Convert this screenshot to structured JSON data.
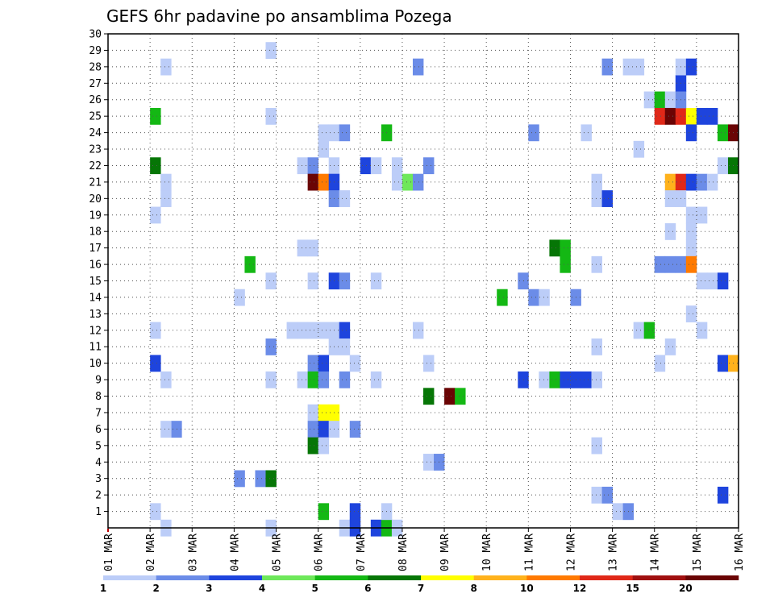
{
  "chart_data": {
    "type": "heatmap",
    "title": "GEFS 6hr padavine po ansamblima Pozega",
    "xlabel": "",
    "ylabel": "",
    "x_ticks": [
      "01 MAR",
      "02 MAR",
      "03 MAR",
      "04 MAR",
      "05 MAR",
      "06 MAR",
      "07 MAR",
      "08 MAR",
      "09 MAR",
      "10 MAR",
      "11 MAR",
      "12 MAR",
      "13 MAR",
      "14 MAR",
      "15 MAR",
      "16 MAR"
    ],
    "y_ticks": [
      "1",
      "2",
      "3",
      "4",
      "5",
      "6",
      "7",
      "8",
      "9",
      "10",
      "11",
      "12",
      "13",
      "14",
      "15",
      "16",
      "17",
      "18",
      "19",
      "20",
      "21",
      "22",
      "23",
      "24",
      "25",
      "26",
      "27",
      "28",
      "29",
      "30"
    ],
    "x_range_days": [
      0,
      15
    ],
    "y_range_members": [
      0,
      30
    ],
    "time_step_hours": 6,
    "grid": "dotted",
    "legend": {
      "placement": "bottom",
      "levels": [
        "1",
        "2",
        "3",
        "4",
        "5",
        "6",
        "7",
        "8",
        "10",
        "12",
        "15",
        "20"
      ],
      "colors": [
        "#bccdf8",
        "#6b8ce8",
        "#1e44dd",
        "#6ee85a",
        "#14b814",
        "#067606",
        "#ffff00",
        "#ffb21c",
        "#ff7a00",
        "#e02818",
        "#a01010",
        "#6a0404"
      ]
    },
    "cells_note": "each cell: [forecast day offset (steps of 6h), ensemble member, precipitation class 1-12]",
    "cells": [
      [
        1.25,
        28,
        1
      ],
      [
        1.0,
        25,
        5
      ],
      [
        1.0,
        22,
        6
      ],
      [
        1.25,
        21,
        1
      ],
      [
        1.25,
        20,
        1
      ],
      [
        1.0,
        19,
        1
      ],
      [
        1.0,
        12,
        1
      ],
      [
        1.0,
        10,
        3
      ],
      [
        1.25,
        9,
        1
      ],
      [
        1.5,
        6,
        2
      ],
      [
        1.25,
        6,
        1
      ],
      [
        1.0,
        1,
        1
      ],
      [
        1.25,
        0,
        1
      ],
      [
        3.75,
        29,
        1
      ],
      [
        3.75,
        25,
        1
      ],
      [
        3.0,
        14,
        1
      ],
      [
        3.75,
        15,
        1
      ],
      [
        3.25,
        16,
        5
      ],
      [
        3.75,
        11,
        2
      ],
      [
        3.75,
        9,
        1
      ],
      [
        3.0,
        3,
        2
      ],
      [
        3.5,
        3,
        2
      ],
      [
        3.75,
        3,
        6
      ],
      [
        3.75,
        0,
        1
      ],
      [
        4.25,
        12,
        1
      ],
      [
        4.5,
        22,
        1
      ],
      [
        4.75,
        22,
        2
      ],
      [
        4.5,
        17,
        1
      ],
      [
        4.75,
        17,
        1
      ],
      [
        4.75,
        15,
        1
      ],
      [
        4.5,
        12,
        1
      ],
      [
        4.75,
        12,
        1
      ],
      [
        4.75,
        10,
        2
      ],
      [
        4.5,
        9,
        1
      ],
      [
        4.75,
        9,
        5
      ],
      [
        4.75,
        7,
        1
      ],
      [
        4.75,
        6,
        2
      ],
      [
        4.75,
        5,
        6
      ],
      [
        4.75,
        21,
        12
      ],
      [
        5.0,
        24,
        1
      ],
      [
        5.0,
        23,
        1
      ],
      [
        5.25,
        24,
        1
      ],
      [
        5.5,
        24,
        2
      ],
      [
        5.25,
        22,
        1
      ],
      [
        5.0,
        21,
        9
      ],
      [
        5.25,
        21,
        3
      ],
      [
        5.25,
        20,
        2
      ],
      [
        5.5,
        20,
        1
      ],
      [
        5.25,
        15,
        3
      ],
      [
        5.5,
        15,
        2
      ],
      [
        5.0,
        12,
        1
      ],
      [
        5.25,
        12,
        1
      ],
      [
        5.5,
        12,
        3
      ],
      [
        5.25,
        11,
        1
      ],
      [
        5.5,
        11,
        1
      ],
      [
        5.0,
        10,
        3
      ],
      [
        5.0,
        9,
        2
      ],
      [
        5.5,
        9,
        2
      ],
      [
        5.0,
        7,
        7
      ],
      [
        5.25,
        7,
        7
      ],
      [
        5.0,
        6,
        3
      ],
      [
        5.25,
        6,
        1
      ],
      [
        5.0,
        5,
        1
      ],
      [
        5.0,
        1,
        5
      ],
      [
        5.5,
        0,
        1
      ],
      [
        5.75,
        10,
        1
      ],
      [
        5.75,
        6,
        2
      ],
      [
        5.75,
        1,
        3
      ],
      [
        5.75,
        0,
        3
      ],
      [
        6.0,
        22,
        3
      ],
      [
        6.25,
        22,
        1
      ],
      [
        6.25,
        15,
        1
      ],
      [
        6.25,
        9,
        1
      ],
      [
        6.25,
        0,
        3
      ],
      [
        6.5,
        0,
        5
      ],
      [
        6.5,
        1,
        1
      ],
      [
        6.75,
        0,
        1
      ],
      [
        6.5,
        24,
        5
      ],
      [
        6.75,
        22,
        1
      ],
      [
        6.75,
        21,
        1
      ],
      [
        7.0,
        21,
        4
      ],
      [
        7.25,
        21,
        2
      ],
      [
        7.5,
        22,
        2
      ],
      [
        7.25,
        28,
        2
      ],
      [
        7.25,
        12,
        1
      ],
      [
        7.5,
        10,
        1
      ],
      [
        7.5,
        8,
        6
      ],
      [
        7.5,
        4,
        1
      ],
      [
        7.75,
        4,
        2
      ],
      [
        8.0,
        8,
        12
      ],
      [
        8.25,
        8,
        5
      ],
      [
        10.0,
        24,
        2
      ],
      [
        9.75,
        15,
        2
      ],
      [
        9.75,
        9,
        3
      ],
      [
        10.0,
        14,
        2
      ],
      [
        10.25,
        14,
        1
      ],
      [
        10.25,
        9,
        1
      ],
      [
        10.5,
        9,
        5
      ],
      [
        10.75,
        9,
        3
      ],
      [
        11.0,
        9,
        3
      ],
      [
        11.25,
        9,
        3
      ],
      [
        11.5,
        9,
        1
      ],
      [
        10.5,
        17,
        6
      ],
      [
        10.75,
        17,
        5
      ],
      [
        10.75,
        16,
        5
      ],
      [
        11.0,
        14,
        2
      ],
      [
        11.25,
        24,
        1
      ],
      [
        9.25,
        14,
        5
      ],
      [
        11.75,
        28,
        2
      ],
      [
        12.25,
        28,
        1
      ],
      [
        12.5,
        28,
        1
      ],
      [
        12.5,
        23,
        1
      ],
      [
        11.5,
        21,
        1
      ],
      [
        11.5,
        20,
        1
      ],
      [
        11.75,
        20,
        3
      ],
      [
        11.5,
        16,
        1
      ],
      [
        11.5,
        11,
        1
      ],
      [
        12.0,
        1,
        1
      ],
      [
        12.25,
        1,
        2
      ],
      [
        11.5,
        2,
        1
      ],
      [
        11.75,
        2,
        2
      ],
      [
        11.5,
        5,
        1
      ],
      [
        12.5,
        12,
        1
      ],
      [
        12.75,
        12,
        5
      ],
      [
        12.75,
        26,
        1
      ],
      [
        13.0,
        26,
        5
      ],
      [
        13.25,
        26,
        1
      ],
      [
        13.0,
        25,
        10
      ],
      [
        13.25,
        25,
        12
      ],
      [
        13.5,
        25,
        10
      ],
      [
        13.75,
        25,
        7
      ],
      [
        14.0,
        25,
        3
      ],
      [
        14.25,
        25,
        3
      ],
      [
        13.75,
        24,
        3
      ],
      [
        13.25,
        21,
        8
      ],
      [
        13.5,
        21,
        10
      ],
      [
        13.75,
        21,
        3
      ],
      [
        14.0,
        21,
        2
      ],
      [
        14.25,
        21,
        1
      ],
      [
        13.25,
        20,
        1
      ],
      [
        13.5,
        20,
        1
      ],
      [
        13.75,
        19,
        1
      ],
      [
        14.0,
        19,
        1
      ],
      [
        13.25,
        18,
        1
      ],
      [
        13.75,
        18,
        1
      ],
      [
        13.75,
        17,
        1
      ],
      [
        13.0,
        16,
        2
      ],
      [
        13.25,
        16,
        2
      ],
      [
        13.5,
        16,
        2
      ],
      [
        13.75,
        16,
        9
      ],
      [
        13.75,
        13,
        1
      ],
      [
        14.0,
        15,
        1
      ],
      [
        14.25,
        15,
        1
      ],
      [
        14.0,
        12,
        1
      ],
      [
        13.25,
        11,
        1
      ],
      [
        13.0,
        10,
        1
      ],
      [
        13.5,
        27,
        3
      ],
      [
        13.5,
        28,
        1
      ],
      [
        13.75,
        28,
        3
      ],
      [
        13.5,
        26,
        2
      ],
      [
        14.5,
        24,
        5
      ],
      [
        14.75,
        24,
        12
      ],
      [
        14.5,
        22,
        1
      ],
      [
        14.75,
        22,
        6
      ],
      [
        14.5,
        15,
        3
      ],
      [
        14.5,
        10,
        3
      ],
      [
        14.75,
        10,
        8
      ],
      [
        14.5,
        2,
        3
      ]
    ]
  }
}
